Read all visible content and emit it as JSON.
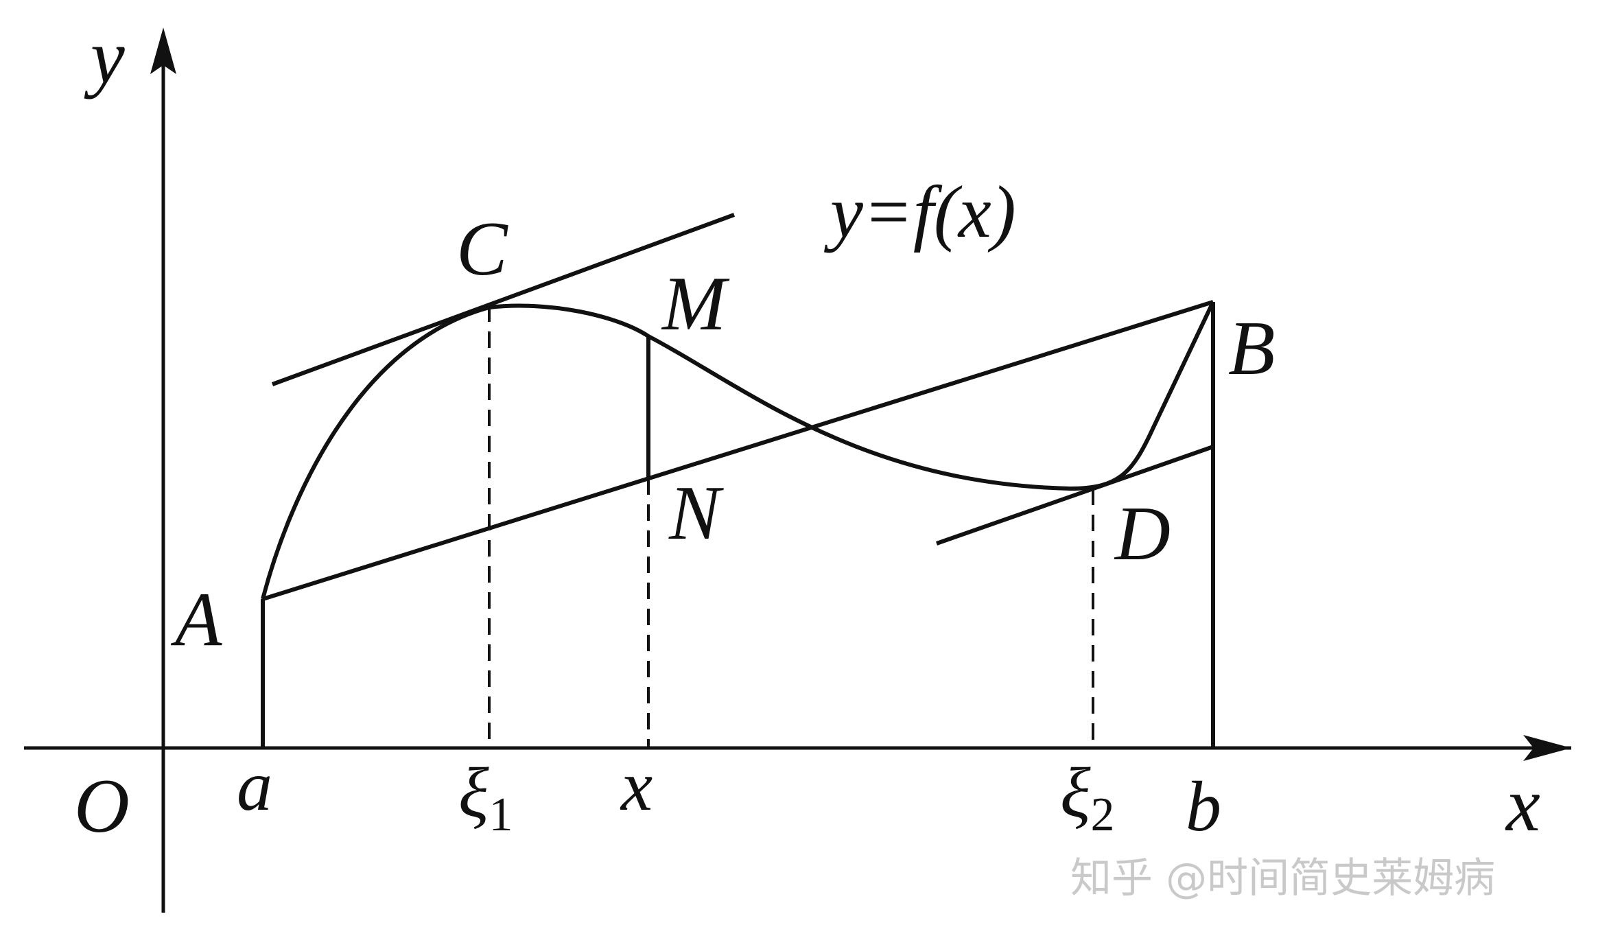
{
  "axes": {
    "x_name": "x",
    "y_name": "y",
    "origin": "O"
  },
  "function_label": "y=f(x)",
  "points": {
    "A": "A",
    "B": "B",
    "C": "C",
    "D": "D",
    "M": "M",
    "N": "N"
  },
  "ticks": {
    "a": "a",
    "xi1_base": "ξ",
    "xi1_sub": "1",
    "x": "x",
    "xi2_base": "ξ",
    "xi2_sub": "2",
    "b": "b"
  },
  "watermark": "知乎 @时间简史莱姆病"
}
